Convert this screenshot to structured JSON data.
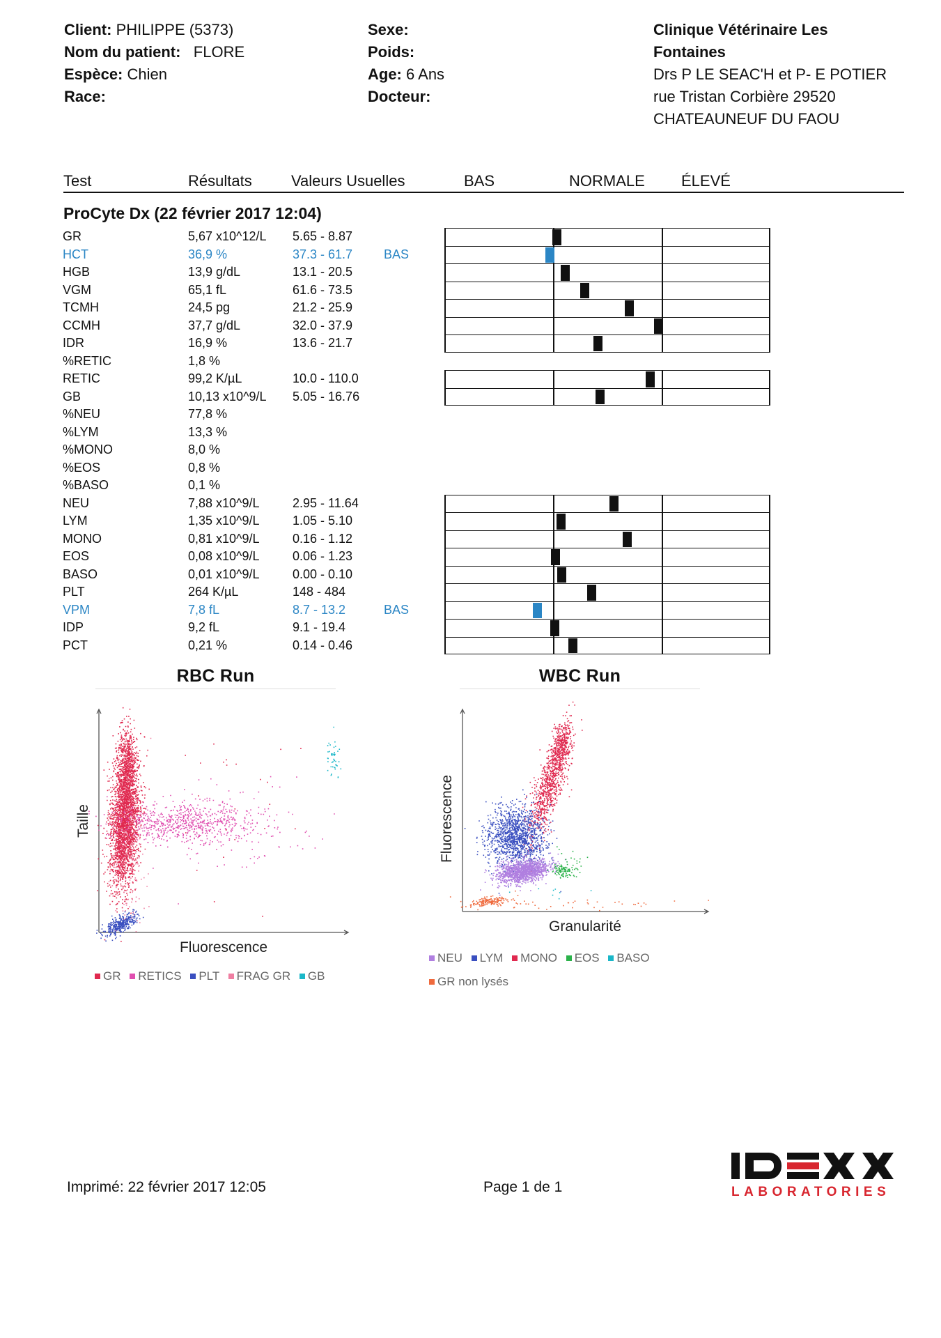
{
  "header": {
    "client_label": "Client:",
    "client": "PHILIPPE (5373)",
    "patient_label": "Nom du patient:",
    "patient": "FLORE",
    "species_label": "Espèce:",
    "species": "Chien",
    "breed_label": "Race:",
    "sex_label": "Sexe:",
    "weight_label": "Poids:",
    "age_label": "Age:",
    "age": "6 Ans",
    "doctor_label": "Docteur:",
    "clinic_line1": "Clinique Vétérinaire Les",
    "clinic_line2": "Fontaines",
    "clinic_line3": "Drs P LE SEAC'H et P- E POTIER",
    "clinic_line4": "rue Tristan Corbière 29520",
    "clinic_line5": "CHATEAUNEUF DU FAOU"
  },
  "columns": {
    "test": "Test",
    "results": "Résultats",
    "reference": "Valeurs Usuelles",
    "low": "BAS",
    "normal": "NORMALE",
    "high": "ÉLEVÉ"
  },
  "section_title": "ProCyte Dx (22 février 2017 12:04)",
  "results": [
    {
      "test": "GR",
      "value": "5,67 x10^12/L",
      "ref": "5.65 - 8.87",
      "flag": "",
      "level": 0.03
    },
    {
      "test": "HCT",
      "value": "36,9 %",
      "ref": "37.3 - 61.7",
      "flag": "BAS",
      "level": -0.03
    },
    {
      "test": "HGB",
      "value": "13,9 g/dL",
      "ref": "13.1 - 20.5",
      "flag": "",
      "level": 0.11
    },
    {
      "test": "VGM",
      "value": "65,1 fL",
      "ref": "61.6 - 73.5",
      "flag": "",
      "level": 0.29
    },
    {
      "test": "TCMH",
      "value": "24,5 pg",
      "ref": "21.2 - 25.9",
      "flag": "",
      "level": 0.7
    },
    {
      "test": "CCMH",
      "value": "37,7 g/dL",
      "ref": "32.0 - 37.9",
      "flag": "",
      "level": 0.97
    },
    {
      "test": "IDR",
      "value": "16,9 %",
      "ref": "13.6 - 21.7",
      "flag": "",
      "level": 0.41
    },
    {
      "test": "%RETIC",
      "value": "1,8 %",
      "ref": "",
      "flag": ""
    },
    {
      "test": "RETIC",
      "value": "99,2 K/µL",
      "ref": "10.0 - 110.0",
      "flag": "",
      "level": 0.89
    },
    {
      "test": "GB",
      "value": "10,13 x10^9/L",
      "ref": "5.05 - 16.76",
      "flag": "",
      "level": 0.43
    },
    {
      "test": "%NEU",
      "value": "77,8 %",
      "ref": "",
      "flag": ""
    },
    {
      "test": "%LYM",
      "value": "13,3 %",
      "ref": "",
      "flag": ""
    },
    {
      "test": "%MONO",
      "value": "8,0 %",
      "ref": "",
      "flag": ""
    },
    {
      "test": "%EOS",
      "value": "0,8 %",
      "ref": "",
      "flag": ""
    },
    {
      "test": "%BASO",
      "value": "0,1 %",
      "ref": "",
      "flag": ""
    },
    {
      "test": "NEU",
      "value": "7,88 x10^9/L",
      "ref": "2.95 - 11.64",
      "flag": "",
      "level": 0.56
    },
    {
      "test": "LYM",
      "value": "1,35 x10^9/L",
      "ref": "1.05 - 5.10",
      "flag": "",
      "level": 0.07
    },
    {
      "test": "MONO",
      "value": "0,81 x10^9/L",
      "ref": "0.16 - 1.12",
      "flag": "",
      "level": 0.68
    },
    {
      "test": "EOS",
      "value": "0,08 x10^9/L",
      "ref": "0.06 - 1.23",
      "flag": "",
      "level": 0.02
    },
    {
      "test": "BASO",
      "value": "0,01 x10^9/L",
      "ref": "0.00 - 0.10",
      "flag": "",
      "level": 0.08
    },
    {
      "test": "PLT",
      "value": "264 K/µL",
      "ref": "148 - 484",
      "flag": "",
      "level": 0.35
    },
    {
      "test": "VPM",
      "value": "7,8 fL",
      "ref": "8.7 - 13.2",
      "flag": "BAS",
      "level": -0.15
    },
    {
      "test": "IDP",
      "value": "9,2 fL",
      "ref": "9.1 - 19.4",
      "flag": "",
      "level": 0.01
    },
    {
      "test": "PCT",
      "value": "0,21 %",
      "ref": "0.14 - 0.46",
      "flag": "",
      "level": 0.18
    }
  ],
  "rbc_plot": {
    "title": "RBC Run",
    "xlabel": "Fluorescence",
    "ylabel": "Taille",
    "legend": [
      {
        "label": "GR",
        "color": "#e0294f"
      },
      {
        "label": "RETICS",
        "color": "#e04fb0"
      },
      {
        "label": "PLT",
        "color": "#3a4fc0"
      },
      {
        "label": "FRAG GR",
        "color": "#ef7fa2"
      },
      {
        "label": "GB",
        "color": "#1ab7c8"
      }
    ]
  },
  "wbc_plot": {
    "title": "WBC Run",
    "xlabel": "Granularité",
    "ylabel": "Fluorescence",
    "legend": [
      {
        "label": "NEU",
        "color": "#b07fe0"
      },
      {
        "label": "LYM",
        "color": "#3a4fc0"
      },
      {
        "label": "MONO",
        "color": "#e0294f"
      },
      {
        "label": "EOS",
        "color": "#2bb24a"
      },
      {
        "label": "BASO",
        "color": "#1ab7c8"
      },
      {
        "label": "GR non lysés",
        "color": "#ef6a3d"
      }
    ]
  },
  "footer": {
    "printed": "Imprimé: 22 février 2017 12:05",
    "page": "Page 1 de 1"
  },
  "logo": {
    "brand": "IDEXX",
    "sub": "LABORATORIES"
  }
}
